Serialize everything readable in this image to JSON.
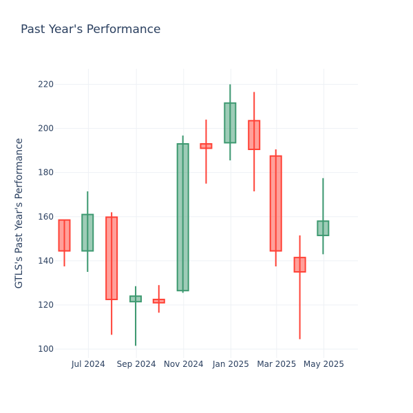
{
  "chart_data": {
    "type": "candlestick",
    "title": "Past Year's Performance",
    "xlabel": "",
    "ylabel": "GTLS's Past Year's Performance",
    "ylim": [
      96,
      227
    ],
    "y_ticks": [
      100,
      120,
      140,
      160,
      180,
      200,
      220
    ],
    "x_range": [
      "2024-05-19",
      "2025-06-14"
    ],
    "x_ticks": [
      {
        "date": "2024-07-01",
        "label": "Jul 2024"
      },
      {
        "date": "2024-09-01",
        "label": "Sep 2024"
      },
      {
        "date": "2024-11-01",
        "label": "Nov 2024"
      },
      {
        "date": "2025-01-01",
        "label": "Jan 2025"
      },
      {
        "date": "2025-03-01",
        "label": "Mar 2025"
      },
      {
        "date": "2025-05-01",
        "label": "May 2025"
      }
    ],
    "grid": true,
    "legend": false,
    "colors": {
      "increasing": "#3d9970",
      "decreasing": "#ff4136"
    },
    "candles": [
      {
        "date": "2024-05-31",
        "open": 158.5,
        "high": 158.5,
        "low": 137.5,
        "close": 144.5
      },
      {
        "date": "2024-06-30",
        "open": 144.5,
        "high": 171.5,
        "low": 135.0,
        "close": 161.0
      },
      {
        "date": "2024-07-31",
        "open": 159.8,
        "high": 162.0,
        "low": 106.5,
        "close": 122.5
      },
      {
        "date": "2024-08-31",
        "open": 121.5,
        "high": 128.5,
        "low": 101.5,
        "close": 124.0
      },
      {
        "date": "2024-09-30",
        "open": 122.5,
        "high": 129.0,
        "low": 116.5,
        "close": 121.0
      },
      {
        "date": "2024-10-31",
        "open": 126.5,
        "high": 196.8,
        "low": 125.5,
        "close": 193.0
      },
      {
        "date": "2024-11-30",
        "open": 193.0,
        "high": 204.0,
        "low": 175.0,
        "close": 191.0
      },
      {
        "date": "2024-12-31",
        "open": 193.5,
        "high": 220.0,
        "low": 185.5,
        "close": 211.5
      },
      {
        "date": "2025-01-31",
        "open": 203.5,
        "high": 216.5,
        "low": 171.5,
        "close": 190.5
      },
      {
        "date": "2025-02-28",
        "open": 187.5,
        "high": 190.5,
        "low": 137.5,
        "close": 144.5
      },
      {
        "date": "2025-03-31",
        "open": 141.5,
        "high": 151.5,
        "low": 104.5,
        "close": 135.0
      },
      {
        "date": "2025-04-30",
        "open": 151.5,
        "high": 177.5,
        "low": 143.0,
        "close": 158.0
      }
    ]
  }
}
